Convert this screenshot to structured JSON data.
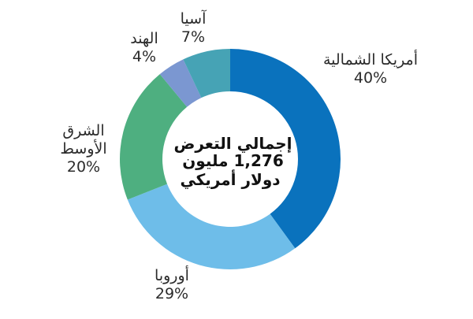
{
  "chart_data": {
    "type": "pie",
    "donut": true,
    "center_lines": [
      "إجمالي التعرض",
      "1,276 مليون",
      "دولار أمريكي"
    ],
    "slices": [
      {
        "name": "أمريكا الشمالية",
        "name_lines": [
          "أمريكا الشمالية"
        ],
        "value": 40,
        "label": "40%",
        "color": "#0a72bd"
      },
      {
        "name": "أوروبا",
        "name_lines": [
          "أوروبا"
        ],
        "value": 29,
        "label": "29%",
        "color": "#6ebde9"
      },
      {
        "name": "الشرق الأوسط",
        "name_lines": [
          "الشرق",
          "الأوسط"
        ],
        "value": 20,
        "label": "20%",
        "color": "#4eaf80"
      },
      {
        "name": "الهند",
        "name_lines": [
          "الهند"
        ],
        "value": 4,
        "label": "4%",
        "color": "#7b97d1"
      },
      {
        "name": "آسيا",
        "name_lines": [
          "آسيا"
        ],
        "value": 7,
        "label": "7%",
        "color": "#46a3b5"
      }
    ]
  }
}
